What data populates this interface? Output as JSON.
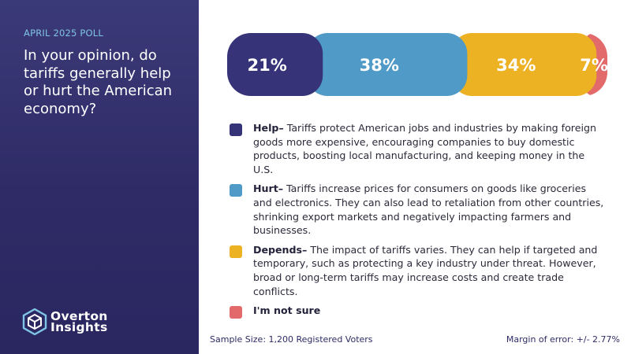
{
  "sidebar": {
    "poll_tag": "APRIL 2025 POLL",
    "question": "In your opinion, do tariffs generally help or hurt the American economy?",
    "logo_line1": "Overton",
    "logo_line2": "Insights",
    "logo_icon": "hexagon-cube-icon"
  },
  "colors": {
    "help": "#363379",
    "hurt": "#4f9ac6",
    "depends": "#ecb223",
    "not_sure": "#e26a6a",
    "sidebar": "#2e2b66"
  },
  "chart_data": {
    "type": "bar",
    "orientation": "horizontal-stacked",
    "categories": [
      "Help",
      "Hurt",
      "Depends",
      "I'm not sure"
    ],
    "values": [
      21,
      38,
      34,
      7
    ],
    "labels": [
      "21%",
      "38%",
      "34%",
      "7%"
    ],
    "unit": "%"
  },
  "legend": [
    {
      "key": "help",
      "title": "Help–",
      "text": "Tariffs protect American jobs and industries by making foreign goods more expensive, encouraging companies to buy domestic products, boosting local manufacturing, and keeping money in the U.S."
    },
    {
      "key": "hurt",
      "title": "Hurt–",
      "text": "Tariffs increase prices for consumers on goods like groceries and electronics. They can also lead to retaliation from other countries, shrinking export markets and negatively impacting farmers and businesses."
    },
    {
      "key": "depends",
      "title": "Depends–",
      "text": "The impact of tariffs varies. They can help if targeted and temporary, such as protecting a key industry under threat. However, broad or long-term tariffs may increase costs and create trade conflicts."
    },
    {
      "key": "not_sure",
      "title": "I'm not sure",
      "text": ""
    }
  ],
  "footer": {
    "sample": "Sample Size: 1,200 Registered Voters",
    "margin": "Margin of error: +/- 2.77%"
  }
}
